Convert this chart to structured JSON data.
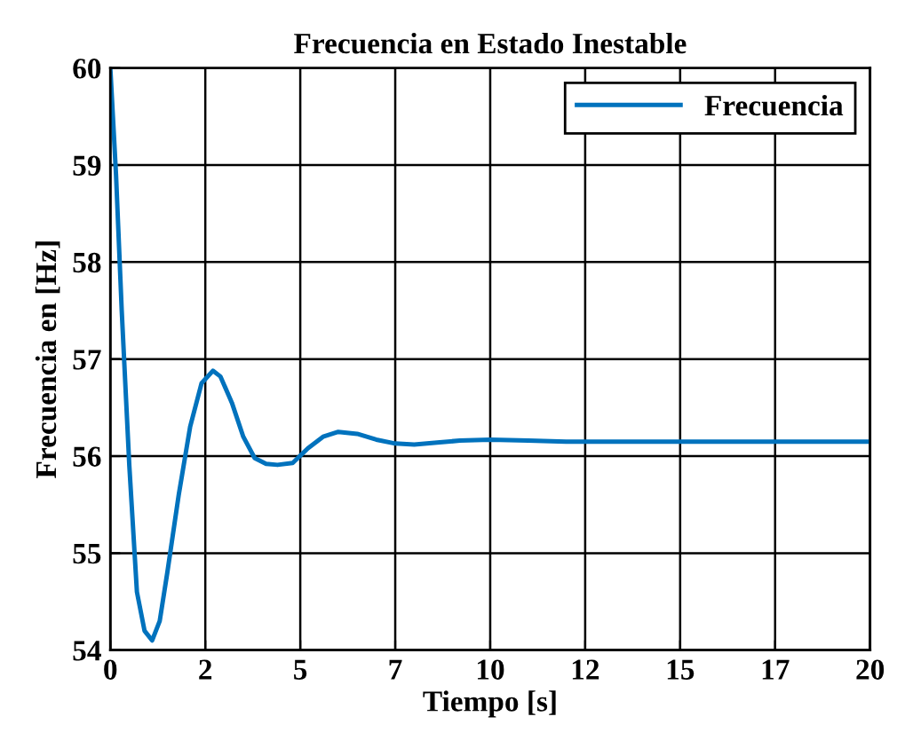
{
  "chart_data": {
    "type": "line",
    "title": "Frecuencia en Estado Inestable",
    "xlabel": "Tiempo [s]",
    "ylabel": "Frecuencia en [Hz]",
    "x": [
      0,
      0.15,
      0.3,
      0.5,
      0.7,
      0.9,
      1.1,
      1.3,
      1.5,
      1.8,
      2.1,
      2.4,
      2.7,
      2.9,
      3.2,
      3.5,
      3.8,
      4.1,
      4.4,
      4.8,
      5.2,
      5.6,
      6.0,
      6.5,
      7.0,
      7.5,
      8.0,
      8.6,
      9.2,
      10,
      11,
      12,
      14,
      16,
      18,
      20
    ],
    "series": [
      {
        "name": "Frecuencia",
        "color": "#0072bd",
        "values": [
          60,
          58.9,
          57.5,
          55.9,
          54.6,
          54.2,
          54.1,
          54.3,
          54.8,
          55.6,
          56.3,
          56.75,
          56.88,
          56.82,
          56.55,
          56.2,
          55.98,
          55.92,
          55.91,
          55.93,
          56.08,
          56.2,
          56.25,
          56.23,
          56.17,
          56.13,
          56.12,
          56.14,
          56.16,
          56.17,
          56.16,
          56.15,
          56.15,
          56.15,
          56.15,
          56.15
        ]
      }
    ],
    "xlim": [
      0,
      20
    ],
    "ylim": [
      54,
      60
    ],
    "xticks": [
      0,
      {
        "value": 2.5,
        "label": "2"
      },
      5,
      {
        "value": 7.5,
        "label": "7"
      },
      10,
      {
        "value": 12.5,
        "label": "12"
      },
      15,
      {
        "value": 17.5,
        "label": "17"
      },
      20
    ],
    "yticks": [
      54,
      55,
      56,
      57,
      58,
      59,
      60
    ],
    "grid": true,
    "legend": "top right",
    "line_style": "solid",
    "marker": "none"
  }
}
